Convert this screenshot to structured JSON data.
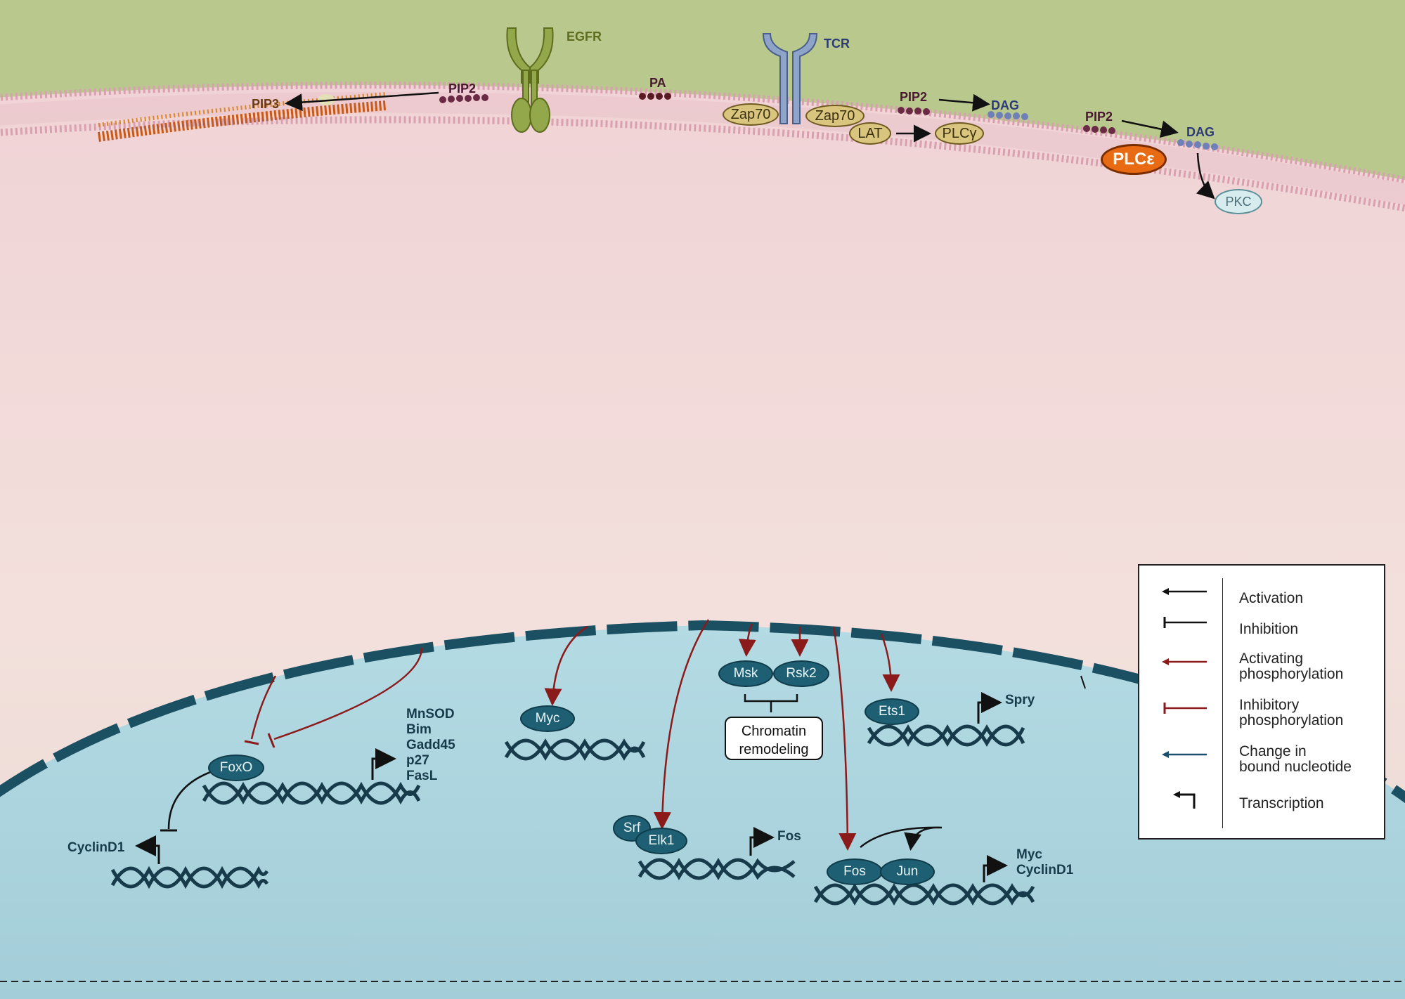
{
  "membrane": {
    "egfr": "EGFR",
    "tcr": "TCR",
    "pip3": "PIP3",
    "pip2_a": "PIP2",
    "pa": "PA",
    "zap70_left": "Zap70",
    "zap70_right": "Zap70",
    "lat": "LAT",
    "plcg": "PLCγ",
    "pip2_b": "PIP2",
    "dag_a": "DAG",
    "pip2_c": "PIP2",
    "dag_b": "DAG",
    "plce": "PLCε",
    "pkc": "PKC"
  },
  "nucleus": {
    "foxo": "FoxO",
    "foxo_targets": [
      "MnSOD",
      "Bim",
      "Gadd45",
      "p27",
      "FasL"
    ],
    "cyclind1_gene": "CyclinD1",
    "myc": "Myc",
    "srf": "Srf",
    "elk1": "Elk1",
    "fos_gene": "Fos",
    "msk": "Msk",
    "rsk2": "Rsk2",
    "chromatin_line1": "Chromatin",
    "chromatin_line2": "remodeling",
    "ets1": "Ets1",
    "spry_gene": "Spry",
    "fos": "Fos",
    "jun": "Jun",
    "myc_cyclind1_genes": [
      "Myc",
      "CyclinD1"
    ]
  },
  "legend": {
    "items": [
      {
        "label": "Activation",
        "symbol": "activation-arrow",
        "color": "#111111"
      },
      {
        "label": "Inhibition",
        "symbol": "inhibition-bar",
        "color": "#111111"
      },
      {
        "label": "Activating\nphosphorylation",
        "symbol": "activating-phosphorylation-arrow",
        "color": "#8b1a1a"
      },
      {
        "label": "Inhibitory\nphosphorylation",
        "symbol": "inhibitory-phosphorylation-bar",
        "color": "#8b1a1a"
      },
      {
        "label": "Change in\nbound nucleotide",
        "symbol": "nucleotide-change-arrow",
        "color": "#1b4f6e"
      },
      {
        "label": "Transcription",
        "symbol": "transcription-arrow",
        "color": "#111111"
      }
    ]
  },
  "colors": {
    "extracellular": "#b9c98e",
    "cytoplasm": "#f0d9d9",
    "nucleoplasm": "#a9d3de",
    "nuclear_envelope": "#1b4f62",
    "tf_node": "#1e5f73",
    "dna": "#173b4a",
    "phosphorylation": "#8b1a1a",
    "tan_protein": "#d9c57e",
    "egfr": "#93a84a",
    "tcr": "#8ea4c8",
    "plce": "#e86a12"
  }
}
